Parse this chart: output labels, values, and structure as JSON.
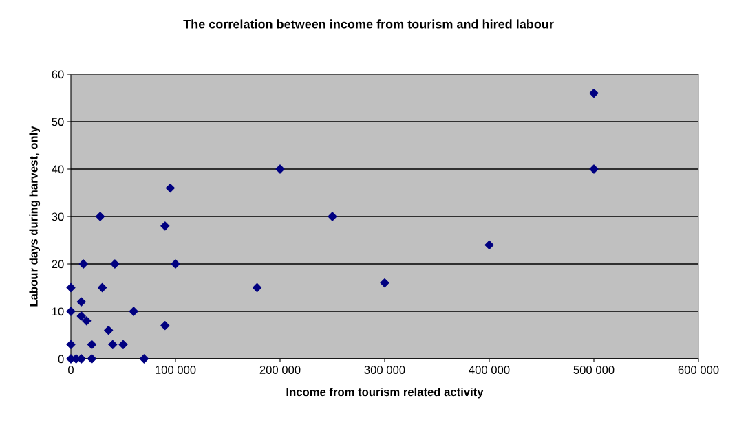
{
  "chart_data": {
    "type": "scatter",
    "title": "The correlation between income from tourism and hired labour",
    "xlabel": "Income from tourism related activity",
    "ylabel": "Labour days during harvest, only",
    "x": [
      95000,
      28000,
      90000,
      12000,
      42000,
      100000,
      0,
      30000,
      10000,
      0,
      60000,
      10000,
      15000,
      90000,
      36000,
      0,
      20000,
      40000,
      50000,
      0,
      5000,
      10000,
      20000,
      70000,
      178000,
      200000,
      250000,
      300000,
      400000,
      500000,
      500000
    ],
    "values": [
      36,
      30,
      28,
      20,
      20,
      20,
      15,
      15,
      12,
      10,
      10,
      9,
      8,
      7,
      6,
      3,
      3,
      3,
      3,
      0,
      0,
      0,
      0,
      0,
      15,
      40,
      30,
      16,
      24,
      56,
      40
    ],
    "color": "#000080",
    "marker": "diamond",
    "xlim": [
      0,
      600000
    ],
    "xticks": [
      {
        "value": 0,
        "label": "0"
      },
      {
        "value": 100000,
        "label": "100 000"
      },
      {
        "value": 200000,
        "label": "200 000"
      },
      {
        "value": 300000,
        "label": "300 000"
      },
      {
        "value": 400000,
        "label": "400 000"
      },
      {
        "value": 500000,
        "label": "500 000"
      },
      {
        "value": 600000,
        "label": "600 000"
      }
    ],
    "ylim": [
      0,
      60
    ],
    "yticks": [
      0,
      10,
      20,
      30,
      40,
      50,
      60
    ],
    "grid": "y",
    "legend": false
  }
}
